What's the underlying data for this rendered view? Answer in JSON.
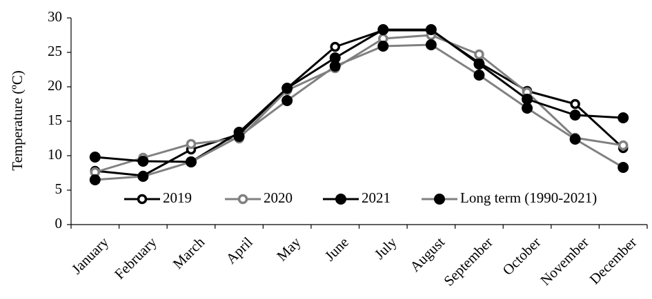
{
  "chart_data": {
    "type": "line",
    "ylabel": "Temperature (ºC)",
    "xlabel": "",
    "ylim": [
      0,
      30
    ],
    "yticks": [
      0,
      5,
      10,
      15,
      20,
      25,
      30
    ],
    "categories": [
      "January",
      "February",
      "March",
      "April",
      "May",
      "June",
      "July",
      "August",
      "September",
      "October",
      "November",
      "December"
    ],
    "legend_position": "bottom-inside",
    "grid": false,
    "series": [
      {
        "name": "2019",
        "line_color": "#000000",
        "marker": "hollow",
        "marker_fill": "#ffffff",
        "marker_stroke": "#000000",
        "values": [
          7.8,
          7.1,
          10.9,
          13.1,
          19.8,
          25.8,
          28.2,
          28.2,
          23.5,
          19.4,
          17.5,
          11.1
        ]
      },
      {
        "name": "2020",
        "line_color": "#808080",
        "marker": "hollow",
        "marker_fill": "#ffffff",
        "marker_stroke": "#808080",
        "values": [
          7.6,
          9.7,
          11.7,
          12.5,
          19.5,
          22.7,
          27.0,
          27.5,
          24.7,
          19.2,
          12.6,
          11.5
        ]
      },
      {
        "name": "2021",
        "line_color": "#000000",
        "marker": "filled",
        "marker_fill": "#000000",
        "marker_stroke": "#000000",
        "values": [
          9.8,
          9.2,
          9.1,
          13.4,
          19.8,
          24.2,
          28.3,
          28.3,
          23.3,
          18.2,
          15.9,
          15.5
        ]
      },
      {
        "name": "Long term (1990-2021)",
        "line_color": "#808080",
        "marker": "filled",
        "marker_fill": "#000000",
        "marker_stroke": "#000000",
        "values": [
          6.5,
          7.0,
          9.1,
          12.8,
          18.0,
          23.0,
          25.9,
          26.1,
          21.7,
          16.9,
          12.4,
          8.3
        ]
      }
    ]
  }
}
